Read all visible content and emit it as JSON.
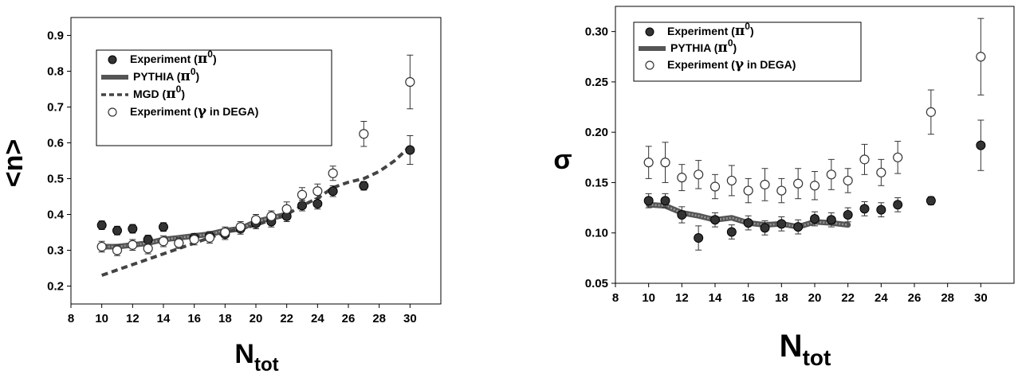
{
  "chart_data": [
    {
      "type": "scatter",
      "ylabel": "<n>",
      "xlabel_main": "N",
      "xlabel_sub": "tot",
      "xlim": [
        8,
        32
      ],
      "ylim": [
        0.15,
        0.95
      ],
      "xticks": [
        "8",
        "10",
        "12",
        "14",
        "16",
        "18",
        "20",
        "22",
        "24",
        "26",
        "28",
        "30"
      ],
      "yticks": [
        "0.2",
        "0.3",
        "0.4",
        "0.5",
        "0.6",
        "0.7",
        "0.8",
        "0.9"
      ],
      "legend": {
        "placement": "top-left",
        "entries": [
          {
            "label": "Experiment (π⁰)",
            "pre": "Experiment (",
            "greek": "π",
            "sup": "0",
            "post": ")"
          },
          {
            "label": "PYTHIA (π⁰)",
            "pre": "PYTHIA (",
            "greek": "π",
            "sup": "0",
            "post": ")"
          },
          {
            "label": "MGD (π⁰)",
            "pre": "MGD (",
            "greek": "π",
            "sup": "0",
            "post": ")"
          },
          {
            "label": "Experiment (γ in DEGA)",
            "pre": "Experiment (",
            "greek": "γ",
            "sup": "",
            "post": " in DEGA)"
          }
        ]
      },
      "series": [
        {
          "name": "Experiment (π⁰)",
          "kind": "filled",
          "x": [
            10,
            11,
            12,
            13,
            14,
            15,
            16,
            17,
            18,
            19,
            20,
            21,
            22,
            23,
            24,
            25,
            27,
            30
          ],
          "y": [
            0.37,
            0.355,
            0.36,
            0.33,
            0.365,
            0.32,
            0.335,
            0.34,
            0.345,
            0.36,
            0.375,
            0.38,
            0.395,
            0.425,
            0.43,
            0.465,
            0.48,
            0.58
          ],
          "err": [
            0.012,
            0.012,
            0.012,
            0.012,
            0.012,
            0.012,
            0.012,
            0.012,
            0.015,
            0.015,
            0.015,
            0.015,
            0.015,
            0.015,
            0.015,
            0.015,
            0.012,
            0.04
          ]
        },
        {
          "name": "PYTHIA (π⁰)",
          "kind": "line",
          "x": [
            10,
            11,
            12,
            13,
            14,
            15,
            16,
            17,
            18,
            19,
            20,
            21,
            22
          ],
          "y": [
            0.31,
            0.31,
            0.315,
            0.32,
            0.33,
            0.335,
            0.34,
            0.345,
            0.355,
            0.36,
            0.38,
            0.39,
            0.4
          ]
        },
        {
          "name": "MGD (π⁰)",
          "kind": "dashed",
          "x": [
            10,
            12,
            14,
            16,
            18,
            20,
            22,
            23,
            24,
            25,
            26,
            27,
            28,
            29,
            30
          ],
          "y": [
            0.23,
            0.26,
            0.29,
            0.32,
            0.35,
            0.37,
            0.4,
            0.425,
            0.445,
            0.475,
            0.49,
            0.5,
            0.52,
            0.55,
            0.59
          ]
        },
        {
          "name": "Experiment (γ in DEGA)",
          "kind": "open",
          "x": [
            10,
            11,
            12,
            13,
            14,
            15,
            16,
            17,
            18,
            19,
            20,
            21,
            22,
            23,
            24,
            25,
            27,
            30
          ],
          "y": [
            0.31,
            0.3,
            0.315,
            0.305,
            0.325,
            0.32,
            0.33,
            0.335,
            0.35,
            0.365,
            0.385,
            0.395,
            0.415,
            0.455,
            0.465,
            0.515,
            0.625,
            0.77
          ],
          "err": [
            0.015,
            0.015,
            0.015,
            0.015,
            0.015,
            0.015,
            0.015,
            0.015,
            0.015,
            0.015,
            0.015,
            0.015,
            0.02,
            0.02,
            0.02,
            0.02,
            0.035,
            0.075
          ]
        }
      ]
    },
    {
      "type": "scatter",
      "ylabel": "σ",
      "xlabel_main": "N",
      "xlabel_sub": "tot",
      "xlim": [
        8,
        32
      ],
      "ylim": [
        0.05,
        0.325
      ],
      "xticks": [
        "8",
        "10",
        "12",
        "14",
        "16",
        "18",
        "20",
        "22",
        "24",
        "26",
        "28",
        "30"
      ],
      "yticks": [
        "0.05",
        "0.10",
        "0.15",
        "0.20",
        "0.25",
        "0.30"
      ],
      "legend": {
        "placement": "top-left",
        "entries": [
          {
            "label": "Experiment (π⁰)",
            "pre": "Experiment (",
            "greek": "π",
            "sup": "0",
            "post": ")"
          },
          {
            "label": "PYTHIA (π⁰)",
            "pre": "PYTHIA (",
            "greek": "π",
            "sup": "0",
            "post": ")"
          },
          {
            "label": "Experiment (γ in DEGA)",
            "pre": "Experiment (",
            "greek": "γ",
            "sup": "",
            "post": " in DEGA)"
          }
        ]
      },
      "series": [
        {
          "name": "Experiment (π⁰)",
          "kind": "filled",
          "x": [
            10,
            11,
            12,
            13,
            14,
            15,
            16,
            17,
            18,
            19,
            20,
            21,
            22,
            23,
            24,
            25,
            27,
            30
          ],
          "y": [
            0.132,
            0.132,
            0.118,
            0.095,
            0.113,
            0.101,
            0.11,
            0.105,
            0.109,
            0.106,
            0.114,
            0.113,
            0.118,
            0.124,
            0.123,
            0.128,
            0.132,
            0.187
          ],
          "err": [
            0.007,
            0.007,
            0.008,
            0.012,
            0.007,
            0.007,
            0.007,
            0.007,
            0.007,
            0.007,
            0.007,
            0.007,
            0.007,
            0.007,
            0.007,
            0.007,
            0.004,
            0.025
          ]
        },
        {
          "name": "PYTHIA (π⁰)",
          "kind": "line",
          "x": [
            10,
            11,
            12,
            13,
            14,
            15,
            16,
            17,
            18,
            19,
            20,
            21,
            22
          ],
          "y": [
            0.128,
            0.127,
            0.12,
            0.117,
            0.113,
            0.115,
            0.11,
            0.108,
            0.109,
            0.106,
            0.111,
            0.11,
            0.108
          ]
        },
        {
          "name": "Experiment (γ in DEGA)",
          "kind": "open",
          "x": [
            10,
            11,
            12,
            13,
            14,
            15,
            16,
            17,
            18,
            19,
            20,
            21,
            22,
            23,
            24,
            25,
            27,
            30
          ],
          "y": [
            0.17,
            0.17,
            0.155,
            0.158,
            0.146,
            0.152,
            0.142,
            0.148,
            0.142,
            0.149,
            0.147,
            0.158,
            0.152,
            0.173,
            0.16,
            0.175,
            0.22,
            0.275
          ],
          "err": [
            0.016,
            0.02,
            0.013,
            0.014,
            0.012,
            0.015,
            0.012,
            0.016,
            0.012,
            0.015,
            0.014,
            0.015,
            0.012,
            0.015,
            0.013,
            0.016,
            0.022,
            0.038
          ]
        }
      ]
    }
  ]
}
